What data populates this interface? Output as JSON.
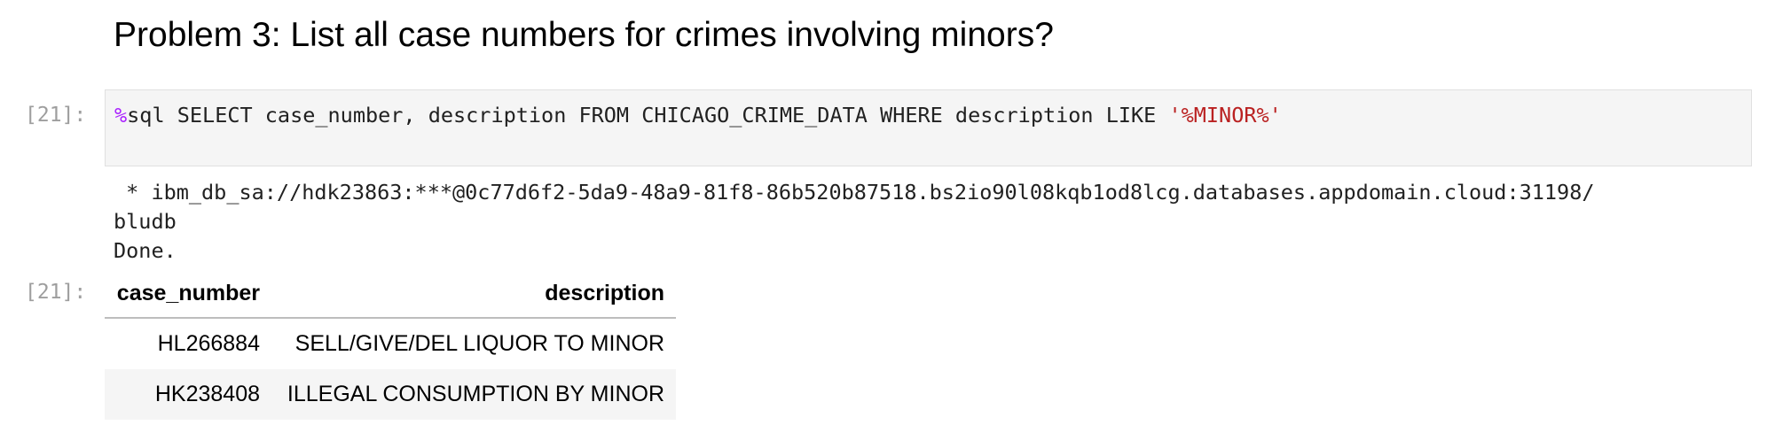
{
  "heading": "Problem 3: List all case numbers for crimes involving minors?",
  "input_cell": {
    "prompt": "[21]:",
    "magic": "%",
    "code": "sql SELECT case_number, description FROM CHICAGO_CRIME_DATA WHERE description LIKE ",
    "string_literal": "'%MINOR%'"
  },
  "stream_output": {
    "line1": " * ibm_db_sa://hdk23863:***@0c77d6f2-5da9-48a9-81f8-86b520b87518.bs2io90l08kqb1od8lcg.databases.appdomain.cloud:31198/",
    "line2": "bludb",
    "line3": "Done."
  },
  "output_cell": {
    "prompt": "[21]:",
    "columns": [
      "case_number",
      "description"
    ],
    "rows": [
      [
        "HL266884",
        "SELL/GIVE/DEL LIQUOR TO MINOR"
      ],
      [
        "HK238408",
        "ILLEGAL CONSUMPTION BY MINOR"
      ]
    ]
  },
  "colors": {
    "magic": "#aa22ff",
    "string": "#ba2121",
    "prompt": "#9e9e9e",
    "cell_background": "#f5f5f5"
  }
}
